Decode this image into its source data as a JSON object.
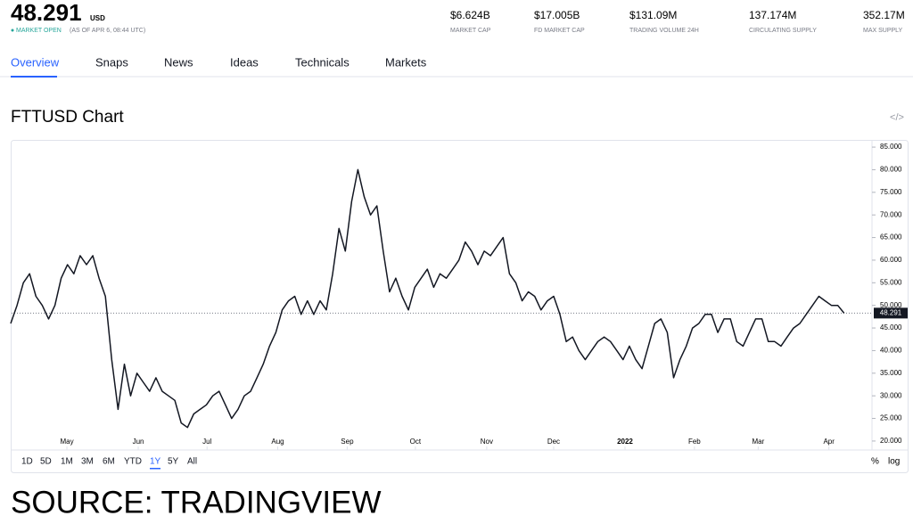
{
  "header": {
    "price": "48.291",
    "currency": "USD",
    "status": "MARKET OPEN",
    "as_of": "(AS OF APR 6, 08:44 UTC)",
    "stats": [
      {
        "value": "$6.624B",
        "label": "MARKET CAP"
      },
      {
        "value": "$17.005B",
        "label": "FD MARKET CAP"
      },
      {
        "value": "$131.09M",
        "label": "TRADING VOLUME 24H"
      },
      {
        "value": "137.174M",
        "label": "CIRCULATING SUPPLY"
      },
      {
        "value": "352.17M",
        "label": "MAX SUPPLY"
      }
    ]
  },
  "tabs": [
    "Overview",
    "Snaps",
    "News",
    "Ideas",
    "Technicals",
    "Markets"
  ],
  "chart_title": "FTTUSD Chart",
  "chart_data": {
    "type": "line",
    "color": "#131722",
    "values": [
      46,
      50,
      55,
      57,
      52,
      50,
      47,
      50,
      56,
      59,
      57,
      61,
      59,
      61,
      56,
      52,
      38,
      27,
      37,
      30,
      35,
      33,
      31,
      34,
      31,
      30,
      29,
      24,
      23,
      26,
      27,
      28,
      30,
      31,
      28,
      25,
      27,
      30,
      31,
      34,
      37,
      41,
      44,
      49,
      51,
      52,
      48,
      51,
      48,
      51,
      49,
      57,
      67,
      62,
      73,
      80,
      74,
      70,
      72,
      62,
      53,
      56,
      52,
      49,
      54,
      56,
      58,
      54,
      57,
      56,
      58,
      60,
      64,
      62,
      59,
      62,
      61,
      63,
      65,
      57,
      55,
      51,
      53,
      52,
      49,
      51,
      52,
      48,
      42,
      43,
      40,
      38,
      40,
      42,
      43,
      42,
      40,
      38,
      41,
      38,
      36,
      41,
      46,
      47,
      44,
      34,
      38,
      41,
      45,
      46,
      48,
      48,
      44,
      47,
      47,
      42,
      41,
      44,
      47,
      47,
      42,
      42,
      41,
      43,
      45,
      46,
      48,
      50,
      52,
      51,
      50,
      50,
      48.291
    ],
    "xlim": [
      0,
      136
    ],
    "xticks": [
      {
        "value": 8.9,
        "label": "May"
      },
      {
        "value": 20.2,
        "label": "Jun"
      },
      {
        "value": 31.1,
        "label": "Jul"
      },
      {
        "value": 42.3,
        "label": "Aug"
      },
      {
        "value": 53.3,
        "label": "Sep"
      },
      {
        "value": 64.1,
        "label": "Oct"
      },
      {
        "value": 75.4,
        "label": "Nov"
      },
      {
        "value": 86,
        "label": "Dec"
      },
      {
        "value": 97.3,
        "label": "2022"
      },
      {
        "value": 108.3,
        "label": "Feb"
      },
      {
        "value": 118.4,
        "label": "Mar"
      },
      {
        "value": 129.6,
        "label": "Apr"
      }
    ],
    "ylim": [
      19,
      86
    ],
    "yticks": [
      {
        "value": 20,
        "label": "20.000"
      },
      {
        "value": 25,
        "label": "25.000"
      },
      {
        "value": 30,
        "label": "30.000"
      },
      {
        "value": 35,
        "label": "35.000"
      },
      {
        "value": 40,
        "label": "40.000"
      },
      {
        "value": 45,
        "label": "45.000"
      },
      {
        "value": 50,
        "label": "50.000"
      },
      {
        "value": 55,
        "label": "55.000"
      },
      {
        "value": 60,
        "label": "60.000"
      },
      {
        "value": 65,
        "label": "65.000"
      },
      {
        "value": 70,
        "label": "70.000"
      },
      {
        "value": 75,
        "label": "75.000"
      },
      {
        "value": 80,
        "label": "80.000"
      },
      {
        "value": 85,
        "label": "85.000"
      }
    ]
  },
  "ranges": [
    "1D",
    "5D",
    "1M",
    "3M",
    "6M",
    "YTD",
    "1Y",
    "5Y",
    "All"
  ],
  "options": [
    "%",
    "log"
  ],
  "source": "SOURCE: TRADINGVIEW"
}
